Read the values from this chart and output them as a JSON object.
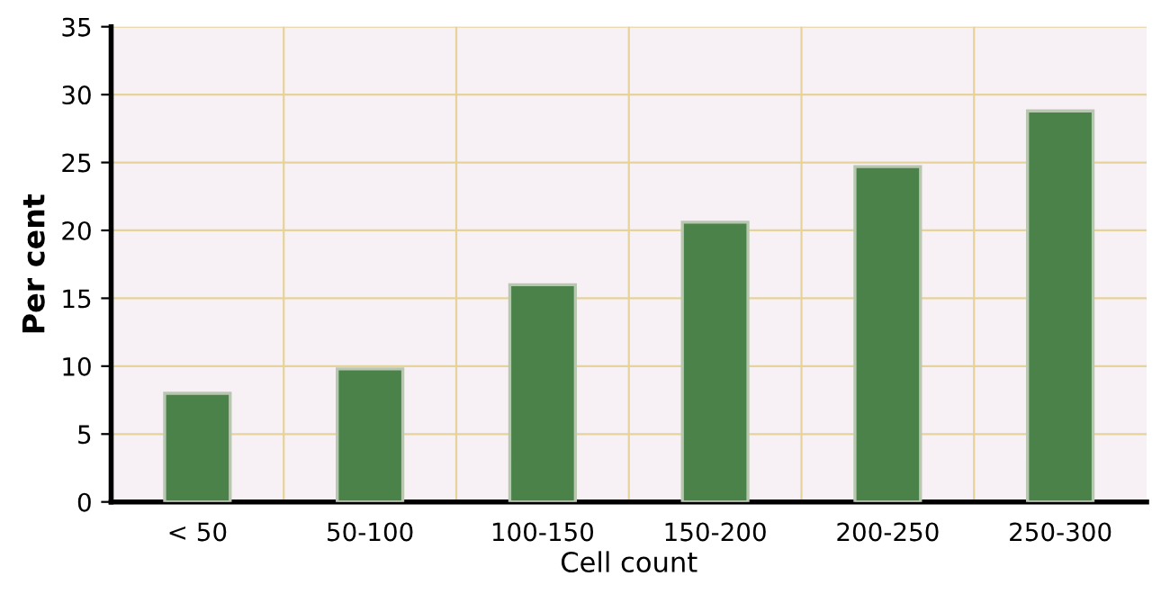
{
  "chart_data": {
    "type": "bar",
    "xlabel": "Cell count",
    "ylabel": "Per cent",
    "categories": [
      "< 50",
      "50-100",
      "100-150",
      "150-200",
      "200-250",
      "250-300"
    ],
    "values": [
      8,
      9.8,
      16,
      20.6,
      24.7,
      28.8
    ],
    "color": "#4a8249",
    "ylim": [
      0,
      35
    ],
    "yticks": [
      0,
      5,
      10,
      15,
      20,
      25,
      30,
      35
    ],
    "grid": true
  }
}
